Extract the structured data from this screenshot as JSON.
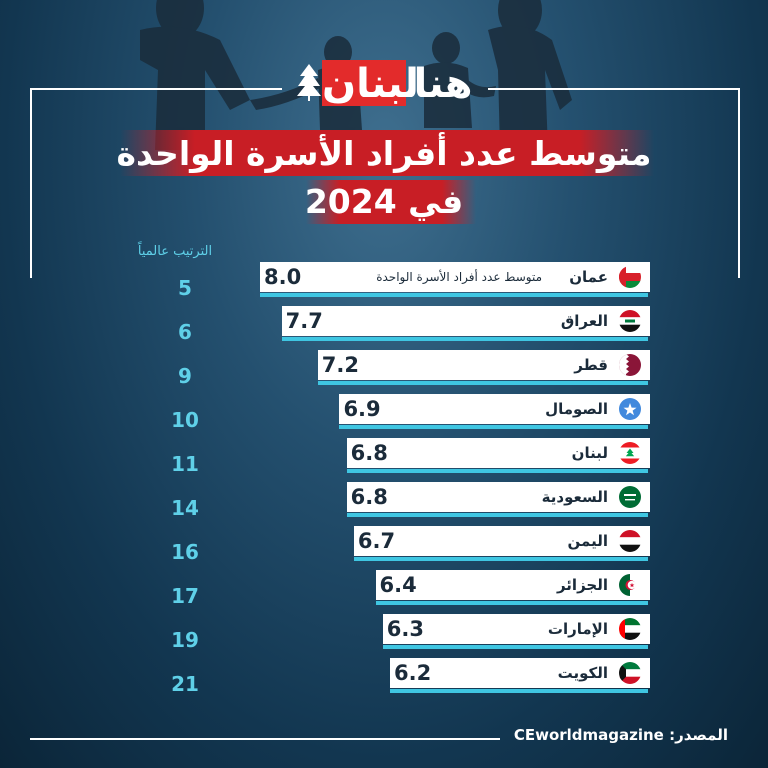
{
  "brand": {
    "logo_left": "هنا",
    "logo_right": "لبنان"
  },
  "header": {
    "title_line1": "متوسط عدد أفراد الأسرة الواحدة",
    "title_line2": "في 2024"
  },
  "source": "CEworldmagazine :المصدر",
  "colors": {
    "accent_red": "#c81e25",
    "bar_cyan": "#3fc6e2",
    "rank_cyan": "#5fd0e8",
    "row_bg": "#ffffff"
  },
  "chart_data": {
    "type": "bar",
    "orientation": "horizontal",
    "title": "متوسط عدد أفراد الأسرة الواحدة في 2024",
    "series_label": "متوسط عدد أفراد الأسرة الواحدة",
    "rank_header": "الترتيب عالمياً",
    "categories": [
      "عمان",
      "العراق",
      "قطر",
      "الصومال",
      "لبنان",
      "السعودية",
      "اليمن",
      "الجزائر",
      "الإمارات",
      "الكويت"
    ],
    "values": [
      8.0,
      7.7,
      7.2,
      6.9,
      6.8,
      6.8,
      6.7,
      6.4,
      6.3,
      6.2
    ],
    "value_labels": [
      "8.0",
      "7.7",
      "7.2",
      "6.9",
      "6.8",
      "6.8",
      "6.7",
      "6.4",
      "6.3",
      "6.2"
    ],
    "ranks": [
      "5",
      "6",
      "9",
      "10",
      "11",
      "14",
      "16",
      "17",
      "19",
      "21"
    ],
    "flags": [
      "oman-flag-icon",
      "iraq-flag-icon",
      "qatar-flag-icon",
      "somalia-flag-icon",
      "lebanon-flag-icon",
      "saudi-flag-icon",
      "yemen-flag-icon",
      "algeria-flag-icon",
      "uae-flag-icon",
      "kuwait-flag-icon"
    ]
  }
}
